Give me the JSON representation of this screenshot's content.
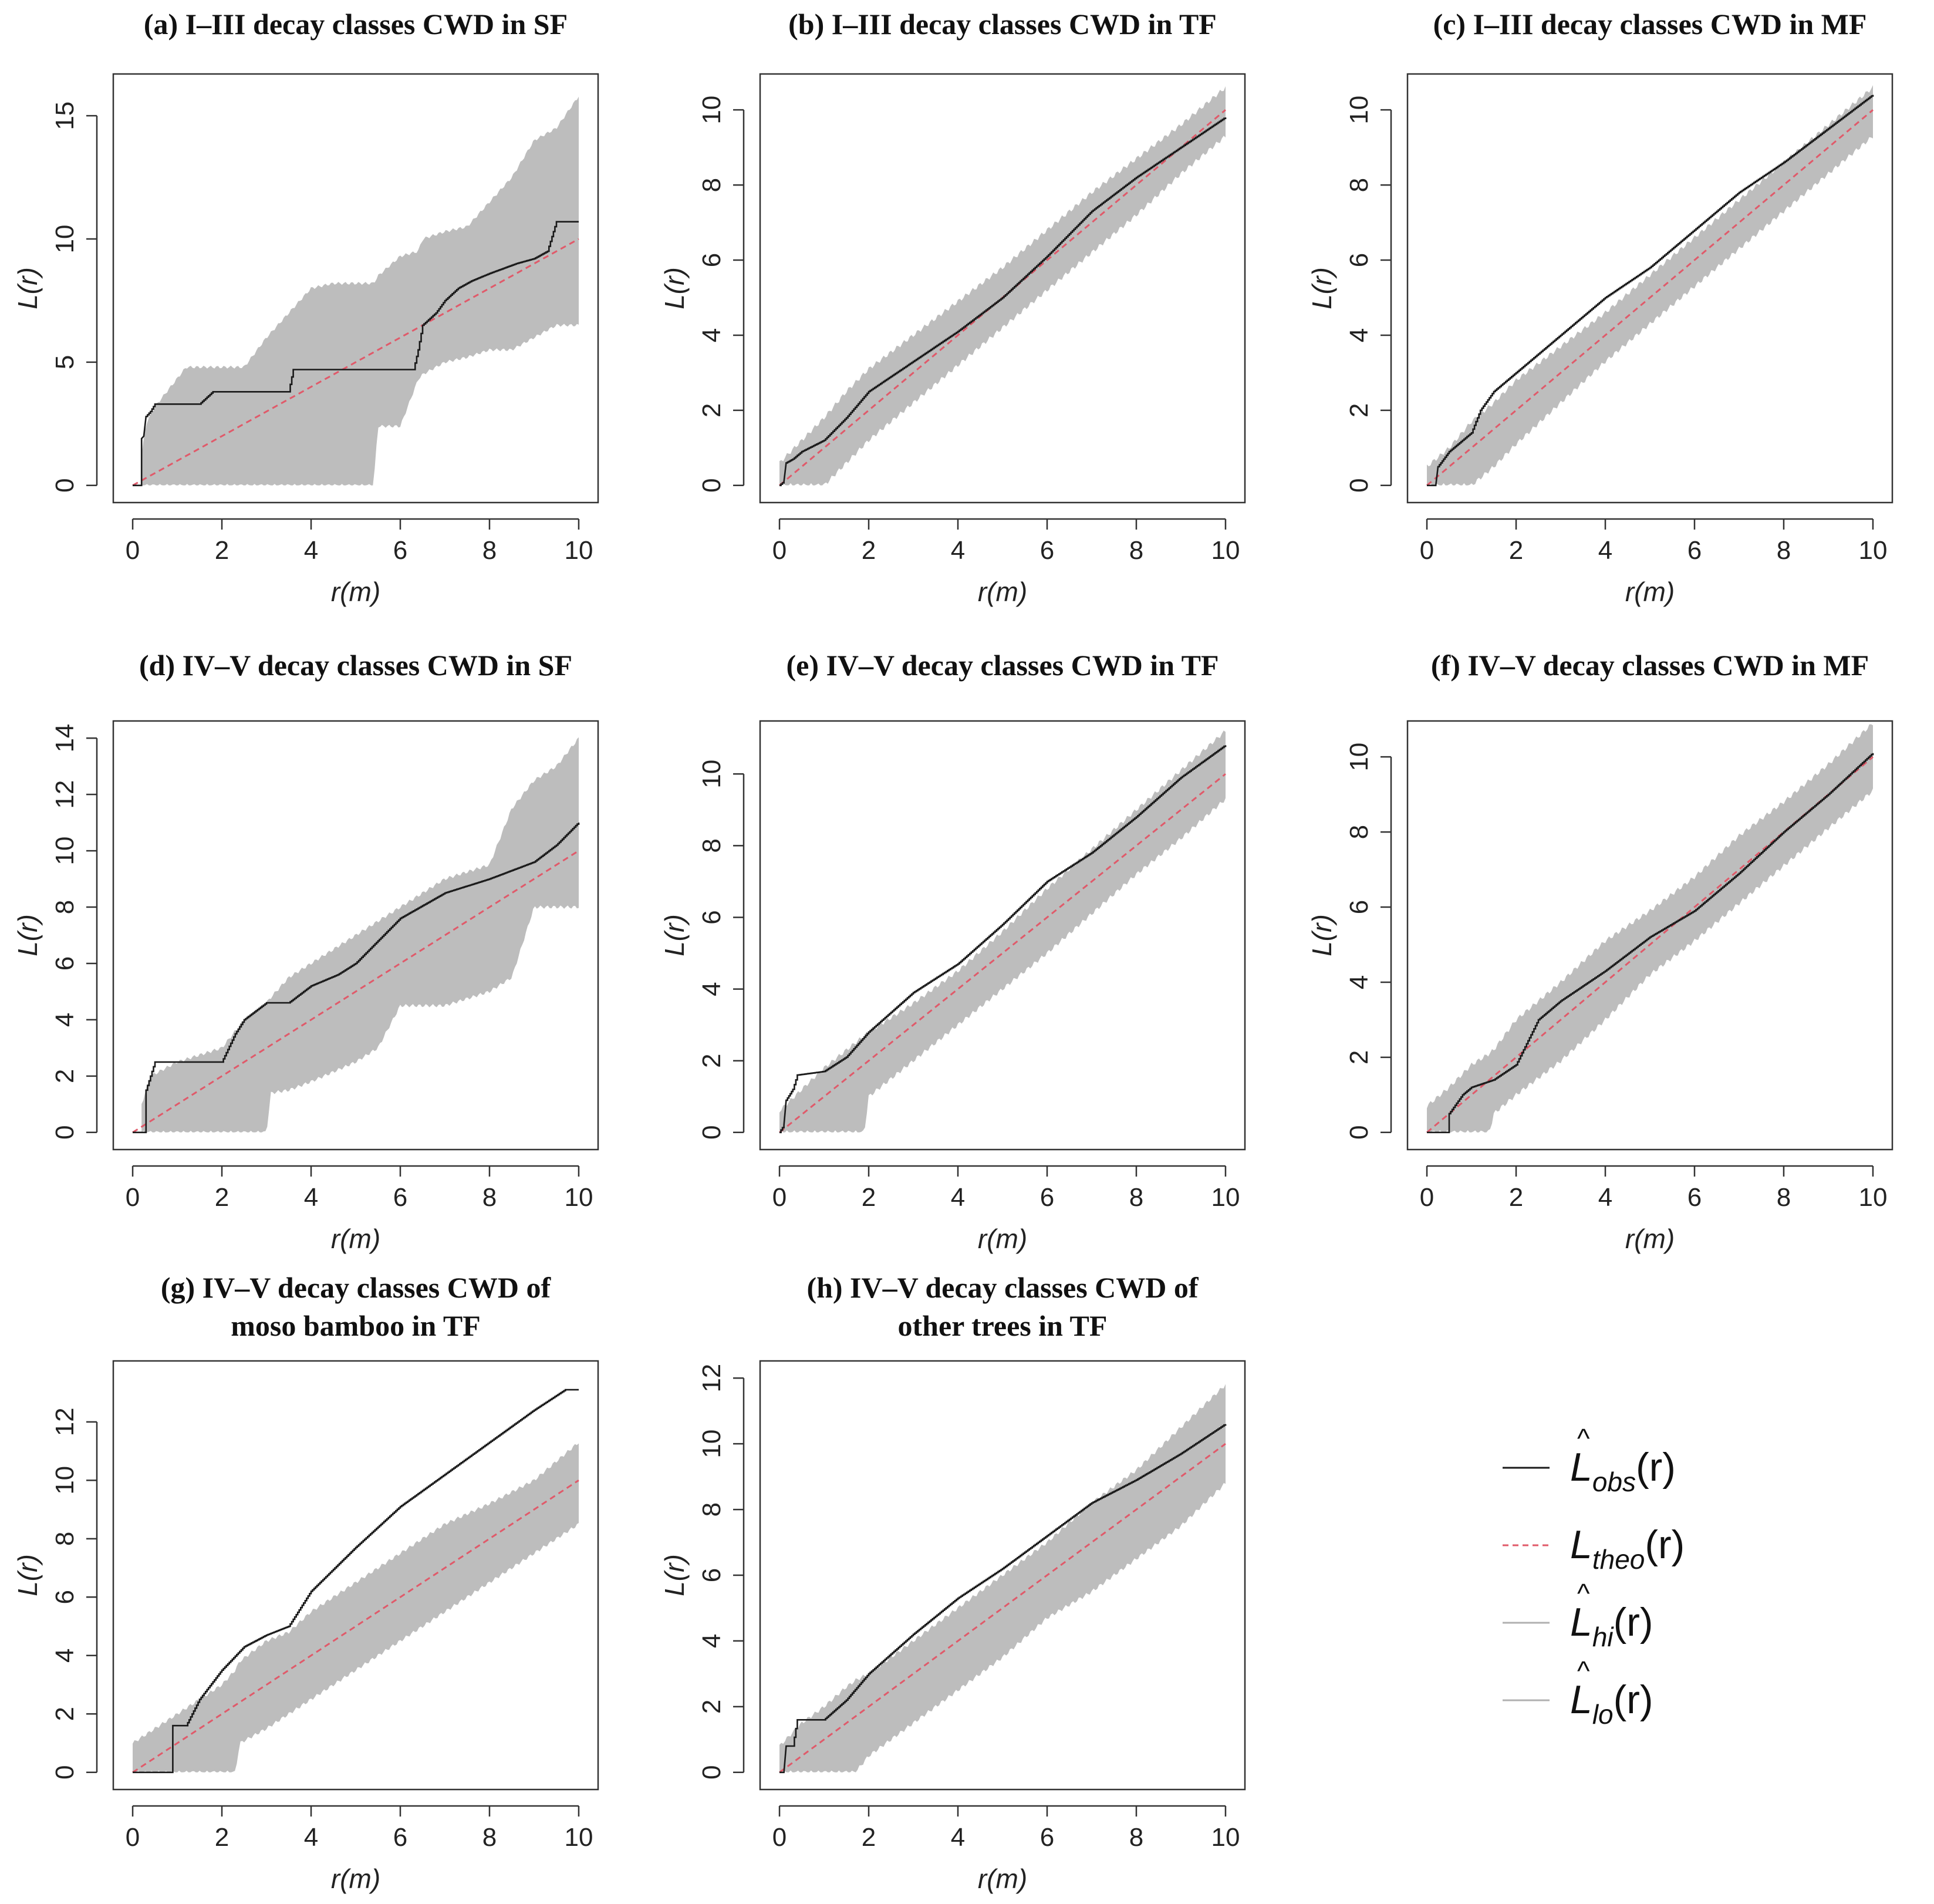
{
  "figure": {
    "axis_labels": {
      "y": "L(r)",
      "x": "r(m)"
    },
    "legend": {
      "items": [
        {
          "key": "obs",
          "letter": "L",
          "hat": "^",
          "sub": "obs",
          "suffix": "(r)",
          "style": "solid",
          "color": "#1a1a1a"
        },
        {
          "key": "theo",
          "letter": "L",
          "hat": "",
          "sub": "theo",
          "suffix": "(r)",
          "style": "dashed",
          "color": "#e05a6a"
        },
        {
          "key": "hi",
          "letter": "L",
          "hat": "^",
          "sub": "hi",
          "suffix": "(r)",
          "style": "solid",
          "color": "#b0b0b0"
        },
        {
          "key": "lo",
          "letter": "L",
          "hat": "^",
          "sub": "lo",
          "suffix": "(r)",
          "style": "solid",
          "color": "#b0b0b0"
        }
      ]
    },
    "colors": {
      "envelope": "#bdbdbd",
      "observed": "#1a1a1a",
      "theoretical": "#e05a6a",
      "frame": "#333333"
    }
  },
  "chart_data": [
    {
      "type": "line",
      "id": "a",
      "title_lines": [
        "(a) I–III decay classes CWD in SF"
      ],
      "xlabel": "r(m)",
      "ylabel": "L(r)",
      "xlim": [
        0,
        10
      ],
      "ylim": [
        0,
        16
      ],
      "xticks": [
        0,
        2,
        4,
        6,
        8,
        10
      ],
      "yticks": [
        0,
        5,
        10,
        15
      ],
      "theo": {
        "x": [
          0,
          10
        ],
        "y": [
          0,
          10
        ]
      },
      "envelope": {
        "x": [
          0.2,
          0.3,
          0.5,
          1.2,
          1.8,
          2.5,
          3.0,
          3.5,
          4.0,
          4.5,
          5.0,
          5.4,
          5.5,
          6.0,
          6.4,
          6.5,
          7.0,
          7.5,
          8.0,
          8.5,
          9.0,
          9.5,
          10.0
        ],
        "hi": [
          1.2,
          2.5,
          3.2,
          4.8,
          4.8,
          4.8,
          6.0,
          7.0,
          8.0,
          8.2,
          8.2,
          8.2,
          8.5,
          9.3,
          9.5,
          10.0,
          10.3,
          10.5,
          11.5,
          12.5,
          14.0,
          14.5,
          15.8
        ],
        "lo": [
          0,
          0,
          0,
          0,
          0,
          0,
          0,
          0,
          0,
          0,
          0,
          0,
          2.4,
          2.4,
          4.3,
          4.5,
          5.0,
          5.2,
          5.5,
          5.5,
          6.0,
          6.5,
          6.5
        ]
      },
      "observed": {
        "x": [
          0,
          0.2,
          0.2,
          0.25,
          0.3,
          0.4,
          0.5,
          1.5,
          1.8,
          3.5,
          3.6,
          6.3,
          6.4,
          6.5,
          6.8,
          7.0,
          7.3,
          7.6,
          8.0,
          8.6,
          9.0,
          9.3,
          9.5,
          10.0
        ],
        "y": [
          0,
          0,
          1.9,
          2.0,
          2.8,
          3.0,
          3.3,
          3.3,
          3.8,
          3.8,
          4.7,
          4.7,
          5.5,
          6.5,
          7.0,
          7.5,
          8.0,
          8.3,
          8.6,
          9.0,
          9.2,
          9.5,
          10.7,
          10.7
        ]
      }
    },
    {
      "type": "line",
      "id": "b",
      "title_lines": [
        "(b) I–III decay classes CWD in TF"
      ],
      "xlabel": "r(m)",
      "ylabel": "L(r)",
      "xlim": [
        0,
        10
      ],
      "ylim": [
        0,
        10.5
      ],
      "xticks": [
        0,
        2,
        4,
        6,
        8,
        10
      ],
      "yticks": [
        0,
        2,
        4,
        6,
        8,
        10
      ],
      "theo": {
        "x": [
          0,
          10
        ],
        "y": [
          0,
          10
        ]
      },
      "envelope": {
        "x": [
          0,
          0.5,
          1.0,
          1.5,
          2.0,
          3.0,
          4.0,
          5.0,
          6.0,
          7.0,
          8.0,
          9.0,
          10.0
        ],
        "hi": [
          0.6,
          1.2,
          1.8,
          2.5,
          3.1,
          4.0,
          4.9,
          5.8,
          6.8,
          7.8,
          8.7,
          9.6,
          10.6
        ],
        "lo": [
          0,
          0,
          0,
          0.6,
          1.2,
          2.2,
          3.2,
          4.2,
          5.2,
          6.2,
          7.2,
          8.3,
          9.3
        ]
      },
      "observed": {
        "x": [
          0,
          0.1,
          0.15,
          0.3,
          0.5,
          1.0,
          1.5,
          2.0,
          3.0,
          4.0,
          5.0,
          6.0,
          7.0,
          8.0,
          9.0,
          10.0
        ],
        "y": [
          0,
          0.1,
          0.6,
          0.7,
          0.9,
          1.2,
          1.8,
          2.5,
          3.3,
          4.1,
          5.0,
          6.1,
          7.3,
          8.2,
          9.0,
          9.8
        ]
      }
    },
    {
      "type": "line",
      "id": "c",
      "title_lines": [
        "(c) I–III decay classes CWD in MF"
      ],
      "xlabel": "r(m)",
      "ylabel": "L(r)",
      "xlim": [
        0,
        10
      ],
      "ylim": [
        0,
        10.5
      ],
      "xticks": [
        0,
        2,
        4,
        6,
        8,
        10
      ],
      "yticks": [
        0,
        2,
        4,
        6,
        8,
        10
      ],
      "theo": {
        "x": [
          0,
          10
        ],
        "y": [
          0,
          10
        ]
      },
      "envelope": {
        "x": [
          0,
          0.5,
          1.0,
          1.5,
          2.0,
          3.0,
          4.0,
          5.0,
          6.0,
          7.0,
          8.0,
          9.0,
          10.0
        ],
        "hi": [
          0.5,
          1.0,
          1.7,
          2.2,
          2.8,
          3.7,
          4.6,
          5.6,
          6.6,
          7.6,
          8.6,
          9.6,
          10.6
        ],
        "lo": [
          0,
          0,
          0,
          0.5,
          1.1,
          2.2,
          3.3,
          4.3,
          5.3,
          6.3,
          7.3,
          8.3,
          9.3
        ]
      },
      "observed": {
        "x": [
          0,
          0.2,
          0.25,
          0.5,
          0.8,
          1.0,
          1.2,
          1.5,
          2.0,
          2.5,
          3.0,
          3.5,
          4.0,
          5.0,
          6.0,
          7.0,
          8.0,
          9.0,
          10.0
        ],
        "y": [
          0,
          0,
          0.5,
          0.9,
          1.2,
          1.4,
          2.0,
          2.5,
          3.0,
          3.5,
          4.0,
          4.5,
          5.0,
          5.8,
          6.8,
          7.8,
          8.6,
          9.5,
          10.4
        ]
      }
    },
    {
      "type": "line",
      "id": "d",
      "title_lines": [
        "(d) IV–V decay classes CWD in SF"
      ],
      "xlabel": "r(m)",
      "ylabel": "L(r)",
      "xlim": [
        0,
        10
      ],
      "ylim": [
        0,
        14
      ],
      "xticks": [
        0,
        2,
        4,
        6,
        8,
        10
      ],
      "yticks": [
        0,
        2,
        4,
        6,
        8,
        10,
        12,
        14
      ],
      "theo": {
        "x": [
          0,
          10
        ],
        "y": [
          0,
          10
        ]
      },
      "envelope": {
        "x": [
          0.2,
          0.4,
          1.0,
          2.0,
          2.5,
          3.0,
          3.1,
          3.5,
          4.0,
          5.0,
          5.5,
          6.0,
          7.0,
          8.0,
          8.5,
          9.0,
          9.5,
          10.0
        ],
        "hi": [
          1.0,
          2.0,
          2.5,
          3.0,
          4.0,
          4.6,
          4.8,
          5.5,
          6.0,
          7.0,
          7.5,
          8.0,
          9.0,
          9.5,
          11.5,
          12.5,
          13.0,
          14.0
        ],
        "lo": [
          0,
          0,
          0,
          0,
          0,
          0,
          1.4,
          1.5,
          1.8,
          2.5,
          3.0,
          4.5,
          4.5,
          5.0,
          5.5,
          8.0,
          8.0,
          8.0
        ]
      },
      "observed": {
        "x": [
          0,
          0.3,
          0.3,
          0.4,
          0.5,
          2.0,
          2.3,
          2.5,
          3.0,
          3.5,
          4.0,
          4.6,
          5.0,
          5.5,
          6.0,
          7.0,
          8.0,
          9.0,
          9.5,
          10.0
        ],
        "y": [
          0,
          0,
          1.5,
          2.0,
          2.5,
          2.5,
          3.5,
          4.0,
          4.6,
          4.6,
          5.2,
          5.6,
          6.0,
          6.8,
          7.6,
          8.5,
          9.0,
          9.6,
          10.2,
          11.0
        ]
      }
    },
    {
      "type": "line",
      "id": "e",
      "title_lines": [
        "(e) IV–V decay classes CWD in TF"
      ],
      "xlabel": "r(m)",
      "ylabel": "L(r)",
      "xlim": [
        0,
        10
      ],
      "ylim": [
        0,
        11
      ],
      "xticks": [
        0,
        2,
        4,
        6,
        8,
        10
      ],
      "yticks": [
        0,
        2,
        4,
        6,
        8,
        10
      ],
      "theo": {
        "x": [
          0,
          10
        ],
        "y": [
          0,
          10
        ]
      },
      "envelope": {
        "x": [
          0,
          0.5,
          1.0,
          1.5,
          1.9,
          2.0,
          3.0,
          4.0,
          5.0,
          6.0,
          7.0,
          8.0,
          9.0,
          10.0
        ],
        "hi": [
          0.6,
          1.2,
          1.8,
          2.3,
          2.7,
          2.8,
          3.6,
          4.5,
          5.6,
          6.8,
          7.9,
          9.0,
          10.1,
          11.2
        ],
        "lo": [
          0,
          0,
          0,
          0,
          0,
          1.0,
          2.0,
          3.0,
          4.0,
          5.0,
          6.1,
          7.2,
          8.2,
          9.3
        ]
      },
      "observed": {
        "x": [
          0,
          0.1,
          0.15,
          0.3,
          0.4,
          1.0,
          1.5,
          2.0,
          3.0,
          4.0,
          5.0,
          6.0,
          7.0,
          8.0,
          9.0,
          10.0
        ],
        "y": [
          0,
          0.2,
          0.9,
          1.2,
          1.6,
          1.7,
          2.1,
          2.8,
          3.9,
          4.7,
          5.8,
          7.0,
          7.8,
          8.8,
          9.9,
          10.8
        ]
      }
    },
    {
      "type": "line",
      "id": "f",
      "title_lines": [
        "(f) IV–V decay classes CWD in MF"
      ],
      "xlabel": "r(m)",
      "ylabel": "L(r)",
      "xlim": [
        0,
        10
      ],
      "ylim": [
        0,
        10.5
      ],
      "xticks": [
        0,
        2,
        4,
        6,
        8,
        10
      ],
      "yticks": [
        0,
        2,
        4,
        6,
        8,
        10
      ],
      "theo": {
        "x": [
          0,
          10
        ],
        "y": [
          0,
          10
        ]
      },
      "envelope": {
        "x": [
          0,
          0.5,
          1.0,
          1.4,
          1.5,
          2.0,
          3.0,
          4.0,
          5.0,
          6.0,
          7.0,
          8.0,
          9.0,
          10.0
        ],
        "hi": [
          0.7,
          1.2,
          1.8,
          2.1,
          2.2,
          3.0,
          4.0,
          5.1,
          5.9,
          6.8,
          7.9,
          8.8,
          9.8,
          10.9
        ],
        "lo": [
          0,
          0,
          0,
          0,
          0.5,
          1.0,
          1.9,
          3.0,
          4.2,
          5.1,
          6.1,
          7.1,
          8.1,
          9.1
        ]
      },
      "observed": {
        "x": [
          0,
          0.5,
          0.5,
          0.8,
          1.0,
          1.5,
          2.0,
          2.5,
          3.0,
          4.0,
          5.0,
          6.0,
          7.0,
          8.0,
          9.0,
          10.0
        ],
        "y": [
          0,
          0,
          0.5,
          1.0,
          1.2,
          1.4,
          1.8,
          3.0,
          3.5,
          4.3,
          5.2,
          5.9,
          6.9,
          8.0,
          9.0,
          10.1
        ]
      }
    },
    {
      "type": "line",
      "id": "g",
      "title_lines": [
        "(g) IV–V decay classes CWD of",
        "moso bamboo in TF"
      ],
      "xlabel": "r(m)",
      "ylabel": "L(r)",
      "xlim": [
        0,
        10
      ],
      "ylim": [
        0,
        13.5
      ],
      "xticks": [
        0,
        2,
        4,
        6,
        8,
        10
      ],
      "yticks": [
        0,
        2,
        4,
        6,
        8,
        10,
        12
      ],
      "theo": {
        "x": [
          0,
          10
        ],
        "y": [
          0,
          10
        ]
      },
      "envelope": {
        "x": [
          0,
          0.5,
          1.0,
          1.5,
          2.0,
          2.3,
          2.4,
          3.0,
          3.5,
          4.0,
          5.0,
          6.0,
          7.0,
          8.0,
          9.0,
          10.0
        ],
        "hi": [
          1.0,
          1.5,
          2.0,
          2.5,
          3.0,
          3.5,
          3.8,
          4.5,
          4.8,
          5.5,
          6.5,
          7.5,
          8.5,
          9.2,
          10.0,
          11.3
        ],
        "lo": [
          0,
          0,
          0,
          0,
          0,
          0,
          1.0,
          1.5,
          2.0,
          2.5,
          3.5,
          4.5,
          5.5,
          6.5,
          7.5,
          8.5
        ]
      },
      "observed": {
        "x": [
          0,
          0.9,
          0.9,
          1.2,
          1.5,
          2.0,
          2.5,
          3.0,
          3.5,
          4.0,
          5.0,
          6.0,
          7.0,
          8.0,
          9.0,
          9.7,
          10.0
        ],
        "y": [
          0,
          0,
          1.6,
          1.6,
          2.5,
          3.5,
          4.3,
          4.7,
          5.0,
          6.2,
          7.7,
          9.1,
          10.2,
          11.3,
          12.4,
          13.1,
          13.1
        ]
      }
    },
    {
      "type": "line",
      "id": "h",
      "title_lines": [
        "(h) IV–V decay classes CWD of",
        "other trees in TF"
      ],
      "xlabel": "r(m)",
      "ylabel": "L(r)",
      "xlim": [
        0,
        10
      ],
      "ylim": [
        0,
        12
      ],
      "xticks": [
        0,
        2,
        4,
        6,
        8,
        10
      ],
      "yticks": [
        0,
        2,
        4,
        6,
        8,
        10,
        12
      ],
      "theo": {
        "x": [
          0,
          10
        ],
        "y": [
          0,
          10
        ]
      },
      "envelope": {
        "x": [
          0,
          0.5,
          1.0,
          1.5,
          1.7,
          2.0,
          3.0,
          4.0,
          5.0,
          6.0,
          7.0,
          8.0,
          9.0,
          10.0
        ],
        "hi": [
          0.8,
          1.5,
          2.0,
          2.6,
          2.8,
          3.0,
          4.0,
          5.0,
          6.0,
          7.0,
          8.2,
          9.2,
          10.5,
          11.8
        ],
        "lo": [
          0,
          0,
          0,
          0,
          0,
          0.5,
          1.5,
          2.5,
          3.5,
          4.7,
          5.5,
          6.5,
          7.5,
          8.8
        ]
      },
      "observed": {
        "x": [
          0,
          0.1,
          0.15,
          0.3,
          0.4,
          1.0,
          1.5,
          2.0,
          3.0,
          4.0,
          5.0,
          6.0,
          7.0,
          8.0,
          9.0,
          10.0
        ],
        "y": [
          0,
          0,
          0.8,
          0.8,
          1.6,
          1.6,
          2.2,
          3.0,
          4.2,
          5.3,
          6.2,
          7.2,
          8.2,
          8.9,
          9.7,
          10.6
        ]
      }
    }
  ]
}
